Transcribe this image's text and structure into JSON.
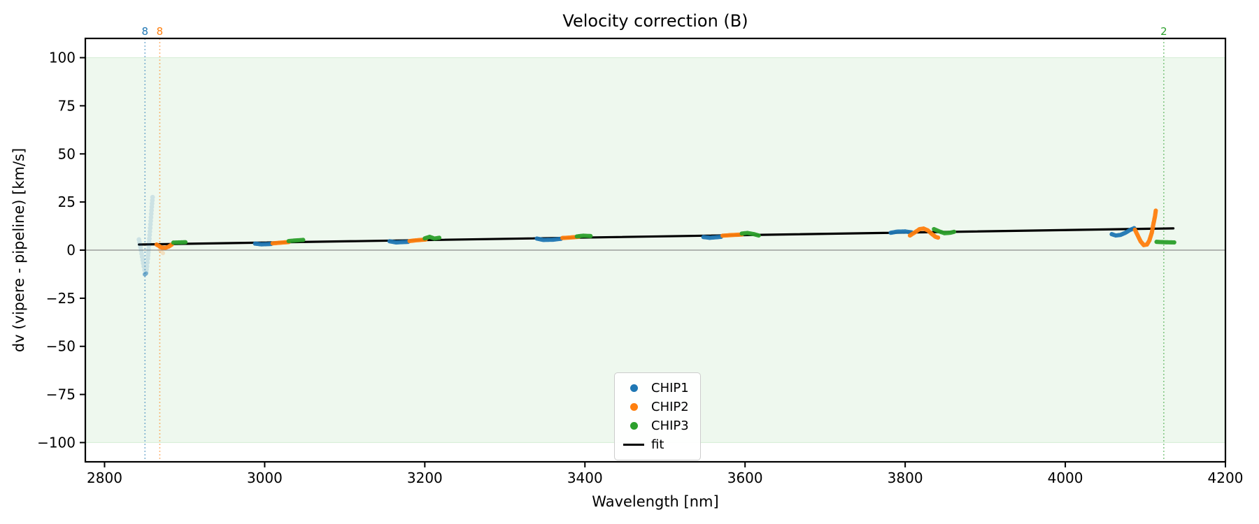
{
  "title": "Velocity correction (B)",
  "axes": {
    "xlabel": "Wavelength [nm]",
    "ylabel": "dv (vipere - pipeline) [km/s]",
    "xlim": [
      2776,
      4200
    ],
    "ylim": [
      -110,
      110
    ],
    "xticks": [
      2800,
      3000,
      3200,
      3400,
      3600,
      3800,
      4000,
      4200
    ],
    "yticks": [
      -100,
      -75,
      -50,
      -25,
      0,
      25,
      50,
      75,
      100
    ]
  },
  "colors": {
    "chip1": "#1f77b4",
    "chip2": "#ff7f0e",
    "chip3": "#2ca02c",
    "fit": "#000000",
    "zero_line": "#8c8c8c",
    "band_fill": "rgba(44,160,44,0.08)",
    "band_edge": "rgba(44,160,44,0.16)"
  },
  "legend": {
    "entries": [
      {
        "label": "CHIP1",
        "type": "dot",
        "color": "#1f77b4"
      },
      {
        "label": "CHIP2",
        "type": "dot",
        "color": "#ff7f0e"
      },
      {
        "label": "CHIP3",
        "type": "dot",
        "color": "#2ca02c"
      },
      {
        "label": "fit",
        "type": "line",
        "color": "#000000"
      }
    ]
  },
  "chart_data": {
    "type": "scatter",
    "title": "Velocity correction (B)",
    "xlabel": "Wavelength [nm]",
    "ylabel": "dv (vipere - pipeline) [km/s]",
    "xlim": [
      2776,
      4200
    ],
    "ylim": [
      -110,
      110
    ],
    "grid": false,
    "legend_position": "lower center",
    "band": {
      "ymin": -100,
      "ymax": 100
    },
    "zero_line_y": 0,
    "vlines": [
      {
        "x": 2850.5,
        "label": "8",
        "color": "#1f77b4"
      },
      {
        "x": 2869,
        "label": "8",
        "color": "#ff7f0e"
      },
      {
        "x": 4123,
        "label": "2",
        "color": "#2ca02c"
      }
    ],
    "fit": {
      "label": "fit",
      "x": [
        2843,
        4135
      ],
      "y": [
        2.9,
        11.3
      ]
    },
    "series": [
      {
        "name": "CHIP1",
        "color": "#1f77b4",
        "segments": [
          [
            [
              2988,
              3.4
            ],
            [
              2996,
              3.0
            ],
            [
              3008,
              3.2
            ]
          ],
          [
            [
              3156,
              4.6
            ],
            [
              3164,
              4.0
            ],
            [
              3179,
              4.3
            ]
          ],
          [
            [
              3340,
              6.0
            ],
            [
              3348,
              5.3
            ],
            [
              3360,
              5.4
            ],
            [
              3370,
              5.9
            ]
          ],
          [
            [
              3548,
              6.8
            ],
            [
              3556,
              6.4
            ],
            [
              3570,
              6.9
            ]
          ],
          [
            [
              3782,
              9.0
            ],
            [
              3790,
              9.6
            ],
            [
              3800,
              9.7
            ],
            [
              3808,
              9.2
            ]
          ],
          [
            [
              4058,
              8.3
            ],
            [
              4063,
              7.6
            ],
            [
              4069,
              7.9
            ],
            [
              4075,
              9.0
            ],
            [
              4081,
              10.5
            ],
            [
              4086,
              11.4
            ]
          ]
        ]
      },
      {
        "name": "CHIP2",
        "color": "#ff7f0e",
        "segments": [
          [
            [
              2865,
              2.9
            ],
            [
              2869,
              1.9
            ],
            [
              2872,
              1.3
            ],
            [
              2876,
              1.2
            ],
            [
              2880,
              1.8
            ],
            [
              2884,
              2.9
            ]
          ],
          [
            [
              3010,
              3.5
            ],
            [
              3018,
              3.8
            ],
            [
              3030,
              4.2
            ]
          ],
          [
            [
              3181,
              4.7
            ],
            [
              3189,
              5.1
            ],
            [
              3201,
              5.5
            ]
          ],
          [
            [
              3372,
              6.3
            ],
            [
              3380,
              6.5
            ],
            [
              3392,
              6.9
            ]
          ],
          [
            [
              3572,
              7.5
            ],
            [
              3582,
              7.8
            ],
            [
              3596,
              8.1
            ]
          ],
          [
            [
              3806,
              7.6
            ],
            [
              3812,
              9.2
            ],
            [
              3818,
              10.9
            ],
            [
              3823,
              11.2
            ],
            [
              3828,
              10.3
            ],
            [
              3833,
              8.5
            ],
            [
              3838,
              6.9
            ],
            [
              3841,
              6.5
            ]
          ],
          [
            [
              4087,
              10.6
            ],
            [
              4090,
              8.0
            ],
            [
              4094,
              4.6
            ],
            [
              4098,
              2.6
            ],
            [
              4102,
              2.9
            ],
            [
              4105,
              5.0
            ],
            [
              4108,
              9.0
            ],
            [
              4110,
              13.5
            ],
            [
              4112,
              17.5
            ],
            [
              4113,
              20.5
            ]
          ]
        ]
      },
      {
        "name": "CHIP3",
        "color": "#2ca02c",
        "segments": [
          [
            [
              2886,
              3.9
            ],
            [
              2893,
              4.0
            ],
            [
              2901,
              4.1
            ]
          ],
          [
            [
              3030,
              4.7
            ],
            [
              3038,
              5.0
            ],
            [
              3048,
              5.3
            ]
          ],
          [
            [
              3200,
              6.1
            ],
            [
              3206,
              6.9
            ],
            [
              3212,
              6.0
            ],
            [
              3218,
              6.4
            ]
          ],
          [
            [
              3390,
              7.1
            ],
            [
              3398,
              7.5
            ],
            [
              3407,
              7.3
            ]
          ],
          [
            [
              3596,
              8.6
            ],
            [
              3603,
              8.9
            ],
            [
              3611,
              8.3
            ],
            [
              3617,
              7.6
            ]
          ],
          [
            [
              3836,
              10.9
            ],
            [
              3842,
              9.8
            ],
            [
              3849,
              8.8
            ],
            [
              3856,
              9.0
            ],
            [
              3861,
              9.5
            ]
          ],
          [
            [
              4114,
              4.3
            ],
            [
              4124,
              4.1
            ],
            [
              4136,
              4.0
            ]
          ]
        ]
      },
      {
        "name": "CHIP1-faded-plume",
        "color": "#1f77b4",
        "alpha": 0.16,
        "radius": 3.4,
        "step": 4.5,
        "segments": [
          [
            [
              2843,
              5.5
            ],
            [
              2845,
              1.5
            ],
            [
              2847,
              -3.5
            ],
            [
              2849,
              -8.5
            ],
            [
              2851,
              -12.3
            ]
          ],
          [
            [
              2851,
              -12.3
            ],
            [
              2852,
              -11.5
            ],
            [
              2853,
              -8.5
            ],
            [
              2854,
              -4.5
            ],
            [
              2855,
              0.5
            ],
            [
              2856,
              6.0
            ],
            [
              2857,
              11.5
            ],
            [
              2858,
              17.0
            ],
            [
              2859,
              22.5
            ],
            [
              2860,
              27.5
            ]
          ]
        ]
      },
      {
        "name": "CHIP1-plume-tip",
        "color": "#1f77b4",
        "alpha": 0.5,
        "radius": 3.0,
        "step": 2.5,
        "segments": [
          [
            [
              2850.2,
              -12.6
            ],
            [
              2851.8,
              -12.1
            ]
          ]
        ]
      },
      {
        "name": "CHIP2-faded-tail",
        "color": "#ff7f0e",
        "alpha": 0.2,
        "radius": 3.0,
        "step": 4.0,
        "segments": [
          [
            [
              2869,
              0.3
            ],
            [
              2871,
              -0.7
            ],
            [
              2873,
              -1.6
            ]
          ]
        ]
      }
    ]
  }
}
